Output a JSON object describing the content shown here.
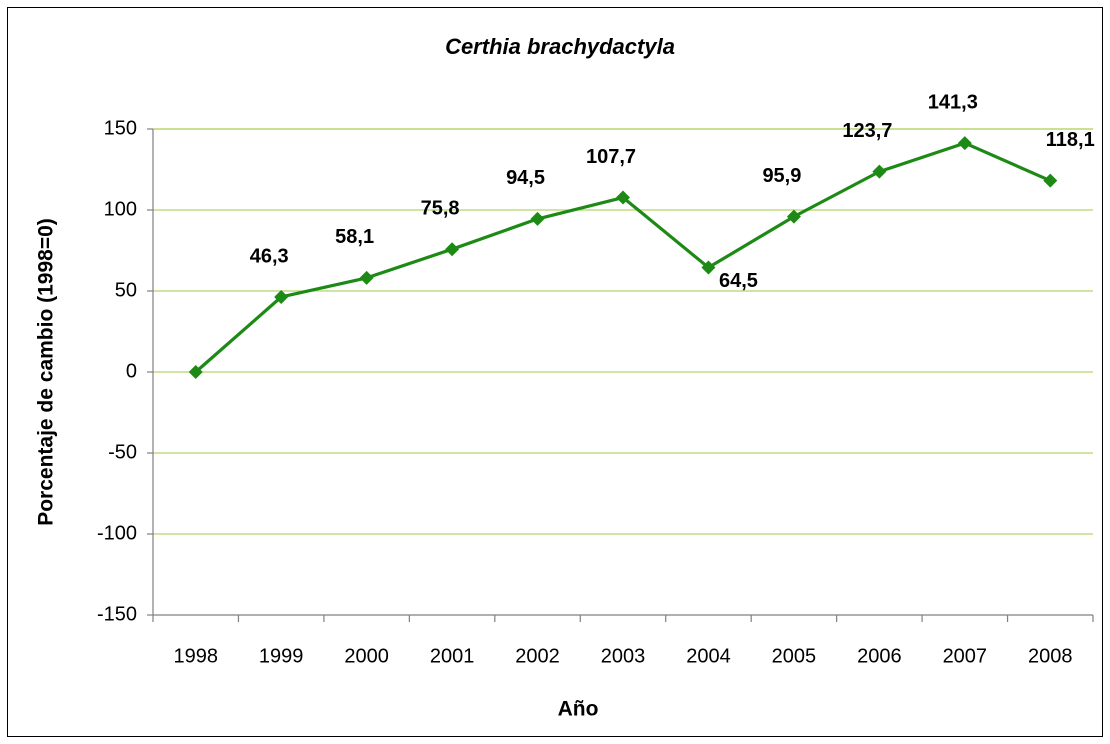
{
  "chart_data": {
    "type": "line",
    "title": "Certhia brachydactyla",
    "x_label": "Año",
    "y_label": "Porcentaje de cambio (1998=0)",
    "categories": [
      "1998",
      "1999",
      "2000",
      "2001",
      "2002",
      "2003",
      "2004",
      "2005",
      "2006",
      "2007",
      "2008"
    ],
    "series": [
      {
        "name": "Certhia brachydactyla",
        "color": "#1e8a16",
        "values": [
          0,
          46.3,
          58.1,
          75.8,
          94.5,
          107.7,
          64.5,
          95.9,
          123.7,
          141.3,
          118.1
        ],
        "value_labels": [
          null,
          "46,3",
          "58,1",
          "75,8",
          "94,5",
          "107,7",
          "64,5",
          "95,9",
          "123,7",
          "141,3",
          "118,1"
        ]
      }
    ],
    "ylim": [
      -150,
      150
    ],
    "yticks": [
      -150,
      -100,
      -50,
      0,
      50,
      100,
      150
    ],
    "grid": true
  }
}
